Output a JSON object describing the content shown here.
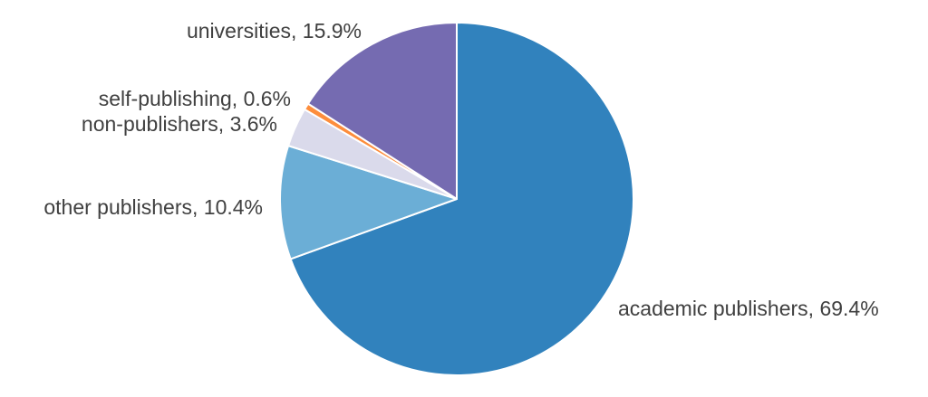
{
  "chart_data": {
    "type": "pie",
    "slices": [
      {
        "label": "academic publishers",
        "value": 69.4,
        "label_text": "academic publishers, 69.4%",
        "color": "#3182bd"
      },
      {
        "label": "other publishers",
        "value": 10.4,
        "label_text": "other publishers, 10.4%",
        "color": "#6baed6"
      },
      {
        "label": "non-publishers",
        "value": 3.6,
        "label_text": "non-publishers, 3.6%",
        "color": "#dadaeb"
      },
      {
        "label": "self-publishing",
        "value": 0.6,
        "label_text": "self-publishing, 0.6%",
        "color": "#fd8d3c"
      },
      {
        "label": "universities",
        "value": 15.9,
        "label_text": "universities, 15.9%",
        "color": "#756bb1"
      }
    ],
    "start": "top",
    "direction": "clockwise",
    "legend": "none",
    "title": ""
  }
}
